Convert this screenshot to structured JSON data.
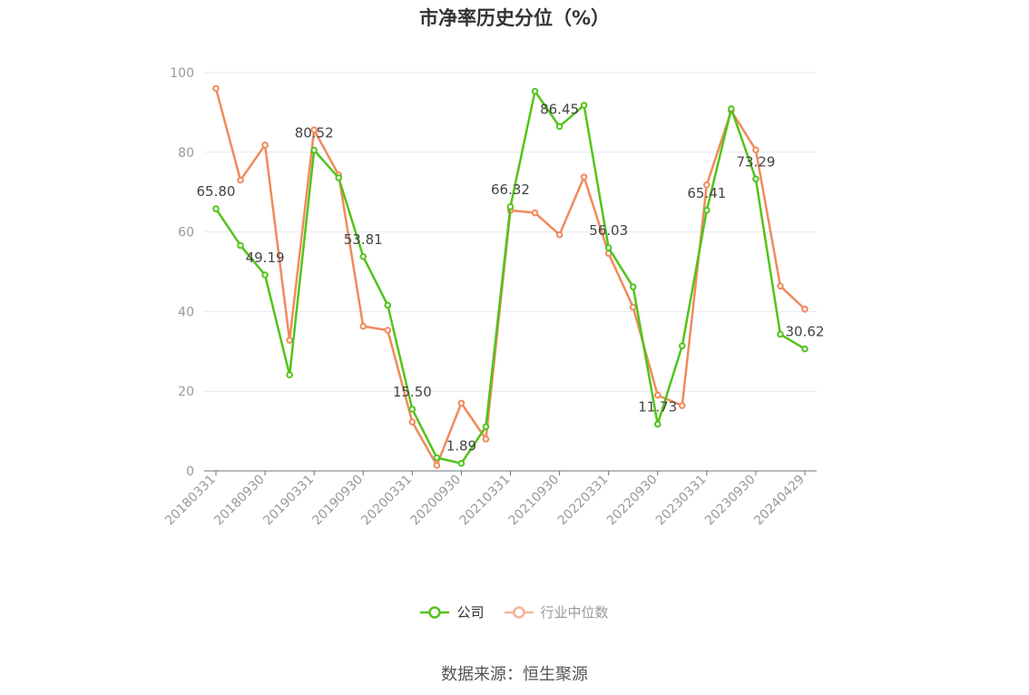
{
  "chart_data": {
    "type": "line",
    "title": "市净率历史分位（%）",
    "ylim": [
      0,
      100
    ],
    "yticks": [
      0,
      20,
      40,
      60,
      80,
      100
    ],
    "x": [
      "20180331",
      "20180630",
      "20180930",
      "20181231",
      "20190331",
      "20190630",
      "20190930",
      "20191231",
      "20200331",
      "20200630",
      "20200930",
      "20201231",
      "20210331",
      "20210630",
      "20210930",
      "20211231",
      "20220331",
      "20220630",
      "20220930",
      "20221231",
      "20230331",
      "20230630",
      "20230930",
      "20231231",
      "20240429"
    ],
    "xtick_labels": [
      "20180331",
      "20180930",
      "20190331",
      "20190930",
      "20200331",
      "20200930",
      "20210331",
      "20210930",
      "20220331",
      "20220930",
      "20230331",
      "20230930",
      "20240429"
    ],
    "series": [
      {
        "name": "公司",
        "color": "#52c41a",
        "values": [
          65.8,
          56.6,
          49.19,
          24.1,
          80.52,
          73.6,
          53.81,
          41.6,
          15.5,
          3.3,
          1.89,
          11.1,
          66.32,
          95.3,
          86.45,
          91.8,
          56.03,
          46.2,
          11.73,
          31.4,
          65.41,
          90.9,
          73.29,
          34.3,
          30.62
        ],
        "labels": {
          "0": "65.80",
          "2": "49.19",
          "4": "80.52",
          "6": "53.81",
          "8": "15.50",
          "10": "1.89",
          "12": "66.32",
          "14": "86.45",
          "16": "56.03",
          "18": "11.73",
          "20": "65.41",
          "22": "73.29",
          "24": "30.62"
        }
      },
      {
        "name": "行业中位数",
        "color": "#f08a5d",
        "values": [
          96.0,
          73.0,
          81.8,
          32.8,
          85.6,
          74.3,
          36.3,
          35.3,
          12.3,
          1.4,
          17.0,
          8.0,
          65.4,
          64.8,
          59.3,
          73.8,
          54.6,
          41.1,
          19.0,
          16.4,
          71.8,
          90.4,
          80.6,
          46.4,
          40.6
        ]
      }
    ],
    "legend_position": "bottom",
    "grid": true
  },
  "legend": [
    {
      "label": "公司",
      "color": "#52c41a"
    },
    {
      "label": "行业中位数",
      "color": "#f4b39a"
    }
  ],
  "source": "数据来源：恒生聚源"
}
